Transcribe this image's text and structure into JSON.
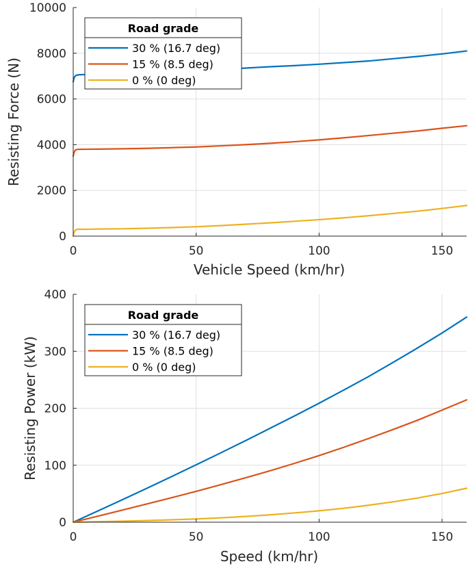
{
  "chart_data": [
    {
      "type": "line",
      "xlabel": "Vehicle Speed (km/hr)",
      "ylabel": "Resisting Force (N)",
      "xlim": [
        0,
        160
      ],
      "ylim": [
        0,
        10000
      ],
      "xticks": [
        0,
        50,
        100,
        150
      ],
      "yticks": [
        0,
        2000,
        4000,
        6000,
        8000,
        10000
      ],
      "grid": true,
      "legend": {
        "title": "Road grade",
        "placement": "top-left"
      },
      "series": [
        {
          "name": "30 % (16.7 deg)",
          "color": "#0072bd",
          "x": [
            0,
            0.3,
            0.6,
            1,
            1.5,
            2,
            3,
            5,
            10,
            20,
            30,
            40,
            50,
            60,
            70,
            80,
            90,
            100,
            110,
            120,
            130,
            140,
            150,
            160
          ],
          "y": [
            6750,
            6900,
            6980,
            7020,
            7045,
            7055,
            7062,
            7068,
            7080,
            7110,
            7150,
            7200,
            7250,
            7300,
            7350,
            7410,
            7460,
            7520,
            7590,
            7660,
            7760,
            7860,
            7970,
            8100
          ]
        },
        {
          "name": "15 % (8.5 deg)",
          "color": "#d95319",
          "x": [
            0,
            0.3,
            0.6,
            1,
            1.5,
            2,
            3,
            5,
            10,
            20,
            30,
            40,
            50,
            60,
            70,
            80,
            90,
            100,
            110,
            120,
            130,
            140,
            150,
            160
          ],
          "y": [
            3500,
            3640,
            3720,
            3770,
            3790,
            3795,
            3798,
            3800,
            3805,
            3820,
            3840,
            3870,
            3900,
            3950,
            4000,
            4060,
            4130,
            4210,
            4300,
            4400,
            4500,
            4600,
            4720,
            4830
          ]
        },
        {
          "name": "0 % (0 deg)",
          "color": "#edb120",
          "x": [
            0,
            0.3,
            0.6,
            1,
            1.5,
            2,
            3,
            5,
            10,
            20,
            30,
            40,
            50,
            60,
            70,
            80,
            90,
            100,
            110,
            120,
            130,
            140,
            150,
            160
          ],
          "y": [
            0,
            140,
            220,
            270,
            295,
            300,
            300,
            300,
            310,
            320,
            345,
            375,
            410,
            460,
            520,
            580,
            650,
            720,
            800,
            890,
            990,
            1090,
            1210,
            1340
          ]
        }
      ]
    },
    {
      "type": "line",
      "xlabel": "Speed (km/hr)",
      "ylabel": "Resisting Power (kW)",
      "xlim": [
        0,
        160
      ],
      "ylim": [
        0,
        400
      ],
      "xticks": [
        0,
        50,
        100,
        150
      ],
      "yticks": [
        0,
        100,
        200,
        300,
        400
      ],
      "grid": true,
      "legend": {
        "title": "Road grade",
        "placement": "top-left"
      },
      "series": [
        {
          "name": "30 % (16.7 deg)",
          "color": "#0072bd",
          "x": [
            0,
            10,
            20,
            30,
            40,
            50,
            60,
            70,
            80,
            90,
            100,
            110,
            120,
            130,
            140,
            150,
            160
          ],
          "y": [
            0,
            19.7,
            39.5,
            59.6,
            80,
            100.7,
            121.7,
            142.9,
            164.7,
            186.5,
            208.9,
            231.9,
            255.3,
            280.2,
            305.7,
            332.1,
            360
          ]
        },
        {
          "name": "15 % (8.5 deg)",
          "color": "#d95319",
          "x": [
            0,
            10,
            20,
            30,
            40,
            50,
            60,
            70,
            80,
            90,
            100,
            110,
            120,
            130,
            140,
            150,
            160
          ],
          "y": [
            0,
            10.6,
            21.2,
            32,
            43,
            54.2,
            65.8,
            77.8,
            90.2,
            103.3,
            116.9,
            131.4,
            146.7,
            162.5,
            178.9,
            196.7,
            214.7
          ]
        },
        {
          "name": "0 % (0 deg)",
          "color": "#edb120",
          "x": [
            0,
            10,
            20,
            30,
            40,
            50,
            60,
            70,
            80,
            90,
            100,
            110,
            120,
            130,
            140,
            150,
            160
          ],
          "y": [
            0,
            0.9,
            1.8,
            2.9,
            4.2,
            5.7,
            7.7,
            10.1,
            12.9,
            16.3,
            20,
            24.4,
            29.7,
            35.7,
            42.4,
            50.4,
            59.6
          ]
        }
      ]
    }
  ]
}
